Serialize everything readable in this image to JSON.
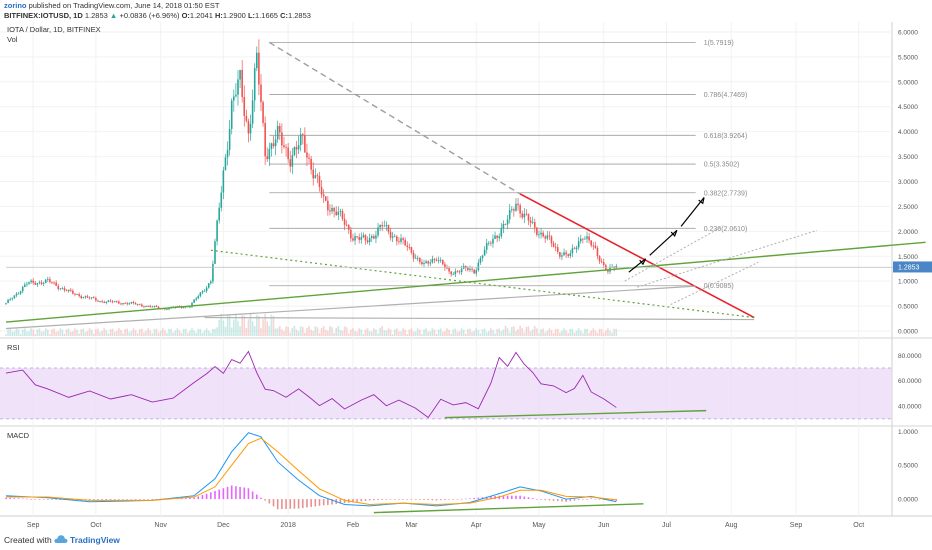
{
  "header": {
    "author": "zorino",
    "published": "published on TradingView.com, June 14, 2018 01:50 EST",
    "symbol": "BITFINEX:IOTUSD, 1D",
    "last": "1.2853",
    "arrow": "▲",
    "change": "+0.0836 (+6.96%)",
    "o_label": "O:",
    "o": "1.2041",
    "h_label": "H:",
    "h": "1.2900",
    "l_label": "L:",
    "l": "1.1665",
    "c_label": "C:",
    "c": "1.2853"
  },
  "footer": {
    "created_with": "Created with",
    "brand": "TradingView"
  },
  "colors": {
    "up": "#26a69a",
    "down": "#ef5350",
    "red_line": "#e8222a",
    "green_line": "#5fa33a",
    "fib": "#9e9e9e",
    "rsi": "#9c27b0",
    "rsi_band": "#e9d8f7",
    "macd": "#2196f3",
    "signal": "#ff9800",
    "hist_pos": "#e040fb",
    "hist_neg": "#e57373",
    "price_tag": "#4a86c5"
  },
  "chart_data": [
    {
      "type": "candlestick",
      "title": "IOTA / Dollar, 1D, BITFINEX",
      "volume_label": "Vol",
      "x_ticks": [
        "Sep",
        "Oct",
        "Nov",
        "Dec",
        "2018",
        "Feb",
        "Mar",
        "Apr",
        "May",
        "Jun",
        "Jul",
        "Aug",
        "Sep",
        "Oct"
      ],
      "y_ticks": [
        "6.0000",
        "5.5000",
        "5.0000",
        "4.5000",
        "4.0000",
        "3.5000",
        "3.0000",
        "2.5000",
        "2.0000",
        "1.5000",
        "1.0000",
        "0.5000",
        "0.0000"
      ],
      "ylim": [
        -0.1,
        6.2
      ],
      "last_price": "1.2853",
      "fib_levels": [
        {
          "label": "1(5.7919)",
          "value": 5.7919
        },
        {
          "label": "0.786(4.7469)",
          "value": 4.7469
        },
        {
          "label": "0.618(3.9264)",
          "value": 3.9264
        },
        {
          "label": "0.5(3.3502)",
          "value": 3.3502
        },
        {
          "label": "0.382(2.7739)",
          "value": 2.7739
        },
        {
          "label": "0.236(2.0610)",
          "value": 2.061
        },
        {
          "label": "0(0.9085)",
          "value": 0.9085
        }
      ],
      "series_close": [
        {
          "x": 0,
          "y": 0.55
        },
        {
          "x": 10,
          "y": 0.95
        },
        {
          "x": 20,
          "y": 1.0
        },
        {
          "x": 32,
          "y": 0.75
        },
        {
          "x": 45,
          "y": 0.6
        },
        {
          "x": 60,
          "y": 0.55
        },
        {
          "x": 75,
          "y": 0.45
        },
        {
          "x": 88,
          "y": 0.5
        },
        {
          "x": 98,
          "y": 1.0
        },
        {
          "x": 104,
          "y": 3.2
        },
        {
          "x": 108,
          "y": 4.5
        },
        {
          "x": 112,
          "y": 5.0
        },
        {
          "x": 116,
          "y": 4.0
        },
        {
          "x": 120,
          "y": 5.4
        },
        {
          "x": 124,
          "y": 3.6
        },
        {
          "x": 130,
          "y": 3.9
        },
        {
          "x": 136,
          "y": 3.5
        },
        {
          "x": 142,
          "y": 3.8
        },
        {
          "x": 148,
          "y": 3.1
        },
        {
          "x": 152,
          "y": 2.6
        },
        {
          "x": 158,
          "y": 2.4
        },
        {
          "x": 166,
          "y": 1.9
        },
        {
          "x": 172,
          "y": 1.8
        },
        {
          "x": 180,
          "y": 2.1
        },
        {
          "x": 186,
          "y": 1.9
        },
        {
          "x": 194,
          "y": 1.6
        },
        {
          "x": 200,
          "y": 1.3
        },
        {
          "x": 206,
          "y": 1.5
        },
        {
          "x": 212,
          "y": 1.15
        },
        {
          "x": 218,
          "y": 1.25
        },
        {
          "x": 224,
          "y": 1.2
        },
        {
          "x": 228,
          "y": 1.55
        },
        {
          "x": 234,
          "y": 1.9
        },
        {
          "x": 240,
          "y": 2.2
        },
        {
          "x": 244,
          "y": 2.6
        },
        {
          "x": 248,
          "y": 2.3
        },
        {
          "x": 252,
          "y": 2.1
        },
        {
          "x": 258,
          "y": 1.9
        },
        {
          "x": 264,
          "y": 1.6
        },
        {
          "x": 270,
          "y": 1.5
        },
        {
          "x": 276,
          "y": 1.95
        },
        {
          "x": 282,
          "y": 1.6
        },
        {
          "x": 288,
          "y": 1.2
        },
        {
          "x": 292,
          "y": 1.29
        }
      ]
    },
    {
      "type": "line",
      "title": "RSI",
      "y_ticks": [
        "80.0000",
        "60.0000",
        "40.0000"
      ],
      "ylim": [
        26,
        92
      ],
      "band": [
        30,
        70
      ],
      "series": [
        {
          "values": [
            {
              "x": 0,
              "y": 66
            },
            {
              "x": 8,
              "y": 70
            },
            {
              "x": 14,
              "y": 58
            },
            {
              "x": 20,
              "y": 52
            },
            {
              "x": 30,
              "y": 45
            },
            {
              "x": 40,
              "y": 50
            },
            {
              "x": 50,
              "y": 44
            },
            {
              "x": 60,
              "y": 48
            },
            {
              "x": 70,
              "y": 43
            },
            {
              "x": 80,
              "y": 47
            },
            {
              "x": 90,
              "y": 60
            },
            {
              "x": 96,
              "y": 67
            },
            {
              "x": 100,
              "y": 73
            },
            {
              "x": 104,
              "y": 66
            },
            {
              "x": 108,
              "y": 75
            },
            {
              "x": 112,
              "y": 72
            },
            {
              "x": 116,
              "y": 83
            },
            {
              "x": 120,
              "y": 68
            },
            {
              "x": 124,
              "y": 55
            },
            {
              "x": 128,
              "y": 52
            },
            {
              "x": 134,
              "y": 49
            },
            {
              "x": 140,
              "y": 54
            },
            {
              "x": 146,
              "y": 44
            },
            {
              "x": 150,
              "y": 40
            },
            {
              "x": 156,
              "y": 44
            },
            {
              "x": 162,
              "y": 38
            },
            {
              "x": 170,
              "y": 43
            },
            {
              "x": 176,
              "y": 48
            },
            {
              "x": 182,
              "y": 42
            },
            {
              "x": 188,
              "y": 46
            },
            {
              "x": 196,
              "y": 39
            },
            {
              "x": 202,
              "y": 33
            },
            {
              "x": 208,
              "y": 45
            },
            {
              "x": 214,
              "y": 39
            },
            {
              "x": 220,
              "y": 43
            },
            {
              "x": 226,
              "y": 40
            },
            {
              "x": 232,
              "y": 58
            },
            {
              "x": 236,
              "y": 80
            },
            {
              "x": 240,
              "y": 73
            },
            {
              "x": 244,
              "y": 82
            },
            {
              "x": 248,
              "y": 71
            },
            {
              "x": 252,
              "y": 65
            },
            {
              "x": 256,
              "y": 58
            },
            {
              "x": 262,
              "y": 54
            },
            {
              "x": 268,
              "y": 50
            },
            {
              "x": 272,
              "y": 52
            },
            {
              "x": 276,
              "y": 63
            },
            {
              "x": 280,
              "y": 52
            },
            {
              "x": 286,
              "y": 44
            },
            {
              "x": 292,
              "y": 38
            }
          ]
        }
      ]
    },
    {
      "type": "line",
      "title": "MACD",
      "y_ticks": [
        "1.0000",
        "0.5000",
        "0.0000"
      ],
      "ylim": [
        -0.25,
        1.05
      ],
      "series": [
        {
          "values": [
            {
              "x": 0,
              "y": 0.05
            },
            {
              "x": 20,
              "y": 0.02
            },
            {
              "x": 40,
              "y": -0.04
            },
            {
              "x": 70,
              "y": -0.02
            },
            {
              "x": 90,
              "y": 0.05
            },
            {
              "x": 100,
              "y": 0.3
            },
            {
              "x": 108,
              "y": 0.7
            },
            {
              "x": 116,
              "y": 0.98
            },
            {
              "x": 122,
              "y": 0.92
            },
            {
              "x": 130,
              "y": 0.55
            },
            {
              "x": 140,
              "y": 0.28
            },
            {
              "x": 150,
              "y": 0.05
            },
            {
              "x": 162,
              "y": -0.08
            },
            {
              "x": 174,
              "y": -0.1
            },
            {
              "x": 190,
              "y": -0.06
            },
            {
              "x": 206,
              "y": -0.1
            },
            {
              "x": 222,
              "y": -0.05
            },
            {
              "x": 236,
              "y": 0.08
            },
            {
              "x": 246,
              "y": 0.18
            },
            {
              "x": 256,
              "y": 0.12
            },
            {
              "x": 268,
              "y": 0.0
            },
            {
              "x": 280,
              "y": 0.04
            },
            {
              "x": 292,
              "y": -0.04
            }
          ]
        },
        {
          "values": [
            {
              "x": 0,
              "y": 0.03
            },
            {
              "x": 20,
              "y": 0.03
            },
            {
              "x": 40,
              "y": -0.02
            },
            {
              "x": 70,
              "y": -0.02
            },
            {
              "x": 90,
              "y": 0.03
            },
            {
              "x": 100,
              "y": 0.18
            },
            {
              "x": 108,
              "y": 0.5
            },
            {
              "x": 116,
              "y": 0.82
            },
            {
              "x": 122,
              "y": 0.9
            },
            {
              "x": 130,
              "y": 0.7
            },
            {
              "x": 140,
              "y": 0.42
            },
            {
              "x": 150,
              "y": 0.15
            },
            {
              "x": 162,
              "y": -0.02
            },
            {
              "x": 174,
              "y": -0.08
            },
            {
              "x": 190,
              "y": -0.06
            },
            {
              "x": 206,
              "y": -0.08
            },
            {
              "x": 222,
              "y": -0.06
            },
            {
              "x": 236,
              "y": 0.03
            },
            {
              "x": 246,
              "y": 0.13
            },
            {
              "x": 256,
              "y": 0.13
            },
            {
              "x": 268,
              "y": 0.04
            },
            {
              "x": 280,
              "y": 0.03
            },
            {
              "x": 292,
              "y": -0.01
            }
          ]
        }
      ]
    }
  ]
}
